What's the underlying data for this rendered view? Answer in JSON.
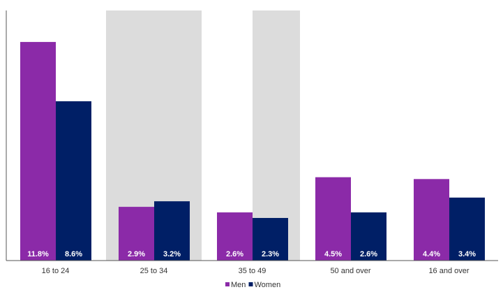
{
  "chart_data": {
    "type": "bar",
    "title": "",
    "xlabel": "",
    "ylabel": "",
    "ylim": [
      0,
      13.5
    ],
    "grid": false,
    "legend_position": "bottom",
    "categories": [
      "16 to 24",
      "25 to 34",
      "35 to 49",
      "50 and over",
      "16 and over"
    ],
    "highlighted_categories": [
      "25 to 34"
    ],
    "highlighted_category_edges": [
      "35 to 49"
    ],
    "highlight_color": "#dcdcdc",
    "series": [
      {
        "name": "Men",
        "color": "#8b2aa8",
        "values": [
          11.8,
          2.9,
          2.6,
          4.5,
          4.4
        ],
        "labels": [
          "11.8%",
          "2.9%",
          "2.6%",
          "4.5%",
          "4.4%"
        ]
      },
      {
        "name": "Women",
        "color": "#001f66",
        "values": [
          8.6,
          3.2,
          2.3,
          2.6,
          3.4
        ],
        "labels": [
          "8.6%",
          "3.2%",
          "2.3%",
          "2.6%",
          "3.4%"
        ]
      }
    ]
  }
}
